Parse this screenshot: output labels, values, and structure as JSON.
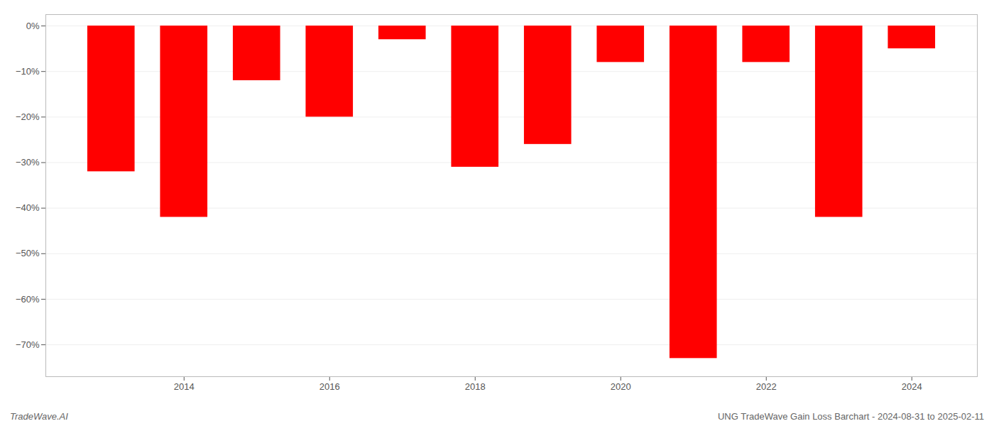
{
  "chart_data": {
    "type": "bar",
    "title": "UNG TradeWave Gain Loss Barchart - 2024-08-31 to 2025-02-11",
    "annotations": [
      "TradeWave.AI"
    ],
    "x": [
      2013,
      2014,
      2015,
      2016,
      2017,
      2018,
      2019,
      2020,
      2021,
      2022,
      2023,
      2024
    ],
    "values": [
      -32,
      -42,
      -12,
      -20,
      -3,
      -31,
      -26,
      -8,
      -73,
      -8,
      -42,
      -5
    ],
    "color": "#ff0000",
    "xlim": [
      2012.1,
      2024.9
    ],
    "xticks": [
      2014,
      2016,
      2018,
      2020,
      2022,
      2024
    ],
    "ylim": [
      -77,
      2.5
    ],
    "yticks": [
      {
        "value": 0,
        "label": "0%"
      },
      {
        "value": -10,
        "label": "−10%"
      },
      {
        "value": -20,
        "label": "−20%"
      },
      {
        "value": -30,
        "label": "−30%"
      },
      {
        "value": -40,
        "label": "−40%"
      },
      {
        "value": -50,
        "label": "−50%"
      },
      {
        "value": -60,
        "label": "−60%"
      },
      {
        "value": -70,
        "label": "−70%"
      }
    ],
    "grid": "y"
  }
}
